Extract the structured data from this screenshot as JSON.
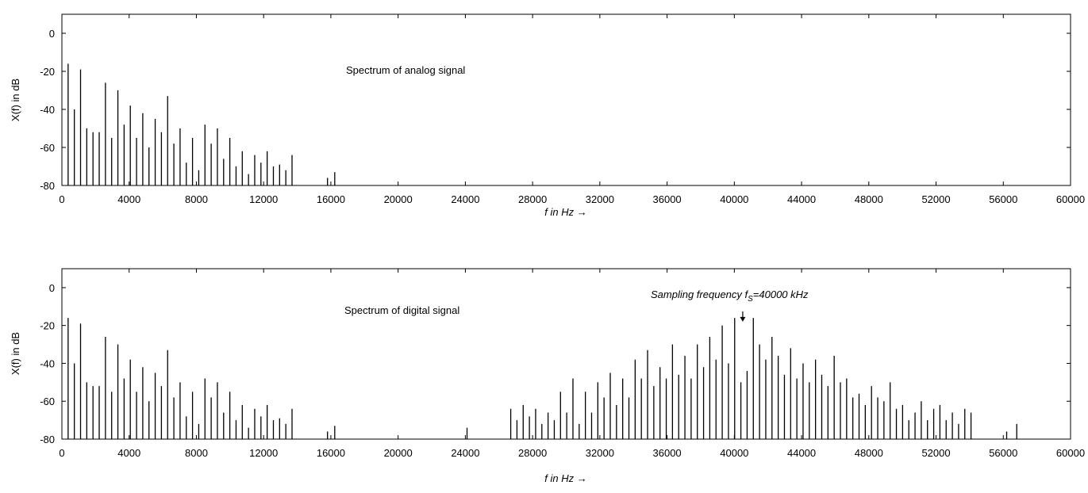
{
  "chart_data": [
    {
      "type": "line",
      "title": "",
      "xlabel": "f in Hz",
      "xlabel_arrow": "→",
      "ylabel": "X(f) in dB",
      "xlim": [
        0,
        60000
      ],
      "ylim": [
        -80,
        10
      ],
      "x_ticks": [
        "0",
        "4000",
        "8000",
        "12000",
        "16000",
        "20000",
        "24000",
        "28000",
        "32000",
        "36000",
        "40000",
        "44000",
        "48000",
        "52000",
        "56000",
        "60000"
      ],
      "y_ticks": [
        "0",
        "-20",
        "-40",
        "-60",
        "-80"
      ],
      "grid": false,
      "annotation": "Spectrum of analog signal",
      "series": [
        {
          "line_color": "#000000",
          "peaks_x": [
            370,
            740,
            1110,
            1480,
            1850,
            2220,
            2590,
            2960,
            3330,
            3700,
            4070,
            4440,
            4810,
            5180,
            5550,
            5920,
            6290,
            6660,
            7030,
            7400,
            7770,
            8140,
            8510,
            8880,
            9250,
            9620,
            9990,
            10360,
            10730,
            11100,
            11470,
            11840,
            12210,
            12580,
            12950,
            13320,
            13690,
            15800,
            16230
          ],
          "peaks_db": [
            -16,
            -40,
            -19,
            -50,
            -52,
            -52,
            -26,
            -55,
            -30,
            -48,
            -38,
            -55,
            -42,
            -60,
            -45,
            -52,
            -33,
            -58,
            -50,
            -68,
            -55,
            -72,
            -48,
            -58,
            -50,
            -66,
            -55,
            -70,
            -62,
            -74,
            -64,
            -68,
            -62,
            -70,
            -69,
            -72,
            -64,
            -76,
            -73
          ]
        }
      ]
    },
    {
      "type": "line",
      "title": "",
      "xlabel": "f in Hz",
      "xlabel_arrow": "→",
      "ylabel": "X(f) in dB",
      "xlim": [
        0,
        60000
      ],
      "ylim": [
        -80,
        10
      ],
      "x_ticks": [
        "0",
        "4000",
        "8000",
        "12000",
        "16000",
        "20000",
        "24000",
        "28000",
        "32000",
        "36000",
        "40000",
        "44000",
        "48000",
        "52000",
        "56000",
        "60000"
      ],
      "y_ticks": [
        "0",
        "-20",
        "-40",
        "-60",
        "-80"
      ],
      "grid": false,
      "annotation": "Spectrum of digital  signal",
      "sampling_annotation": {
        "prefix": "Sampling frequency f",
        "subscript": "S",
        "suffix": "=40000 kHz",
        "arrow_x": 40500,
        "arrow_tip_db": -18
      },
      "series": [
        {
          "line_color": "#000000",
          "peaks_x": [
            370,
            740,
            1110,
            1480,
            1850,
            2220,
            2590,
            2960,
            3330,
            3700,
            4070,
            4440,
            4810,
            5180,
            5550,
            5920,
            6290,
            6660,
            7030,
            7400,
            7770,
            8140,
            8510,
            8880,
            9250,
            9620,
            9990,
            10360,
            10730,
            11100,
            11470,
            11840,
            12210,
            12580,
            12950,
            13320,
            13690,
            15800,
            16230,
            24100,
            26700,
            27070,
            27440,
            27810,
            28180,
            28550,
            28920,
            29290,
            29660,
            30030,
            30400,
            30770,
            31140,
            31510,
            31880,
            32250,
            32620,
            32990,
            33360,
            33730,
            34100,
            34470,
            34840,
            35210,
            35580,
            35950,
            36320,
            36690,
            37060,
            37430,
            37800,
            38170,
            38540,
            38910,
            39280,
            39650,
            40020,
            40390,
            40760,
            41130,
            41500,
            41870,
            42240,
            42610,
            42980,
            43350,
            43720,
            44090,
            44460,
            44830,
            45200,
            45570,
            45940,
            46310,
            46680,
            47050,
            47420,
            47790,
            48160,
            48530,
            48900,
            49270,
            49640,
            50010,
            50380,
            50750,
            51120,
            51490,
            51860,
            52230,
            52600,
            52970,
            53340,
            53710,
            54080,
            56200,
            56800
          ],
          "peaks_db": [
            -16,
            -40,
            -19,
            -50,
            -52,
            -52,
            -26,
            -55,
            -30,
            -48,
            -38,
            -55,
            -42,
            -60,
            -45,
            -52,
            -33,
            -58,
            -50,
            -68,
            -55,
            -72,
            -48,
            -58,
            -50,
            -66,
            -55,
            -70,
            -62,
            -74,
            -64,
            -68,
            -62,
            -70,
            -69,
            -72,
            -64,
            -76,
            -73,
            -74,
            -64,
            -70,
            -62,
            -68,
            -64,
            -72,
            -66,
            -70,
            -55,
            -66,
            -48,
            -72,
            -55,
            -66,
            -50,
            -58,
            -45,
            -62,
            -48,
            -58,
            -38,
            -48,
            -33,
            -52,
            -42,
            -48,
            -30,
            -46,
            -36,
            -48,
            -30,
            -42,
            -26,
            -38,
            -20,
            -40,
            -16,
            -50,
            -44,
            -16,
            -30,
            -38,
            -26,
            -36,
            -46,
            -32,
            -48,
            -40,
            -50,
            -38,
            -46,
            -52,
            -36,
            -50,
            -48,
            -58,
            -56,
            -62,
            -52,
            -58,
            -60,
            -50,
            -64,
            -62,
            -70,
            -66,
            -60,
            -70,
            -64,
            -62,
            -70,
            -66,
            -72,
            -64,
            -66,
            -76,
            -72
          ]
        }
      ]
    }
  ]
}
